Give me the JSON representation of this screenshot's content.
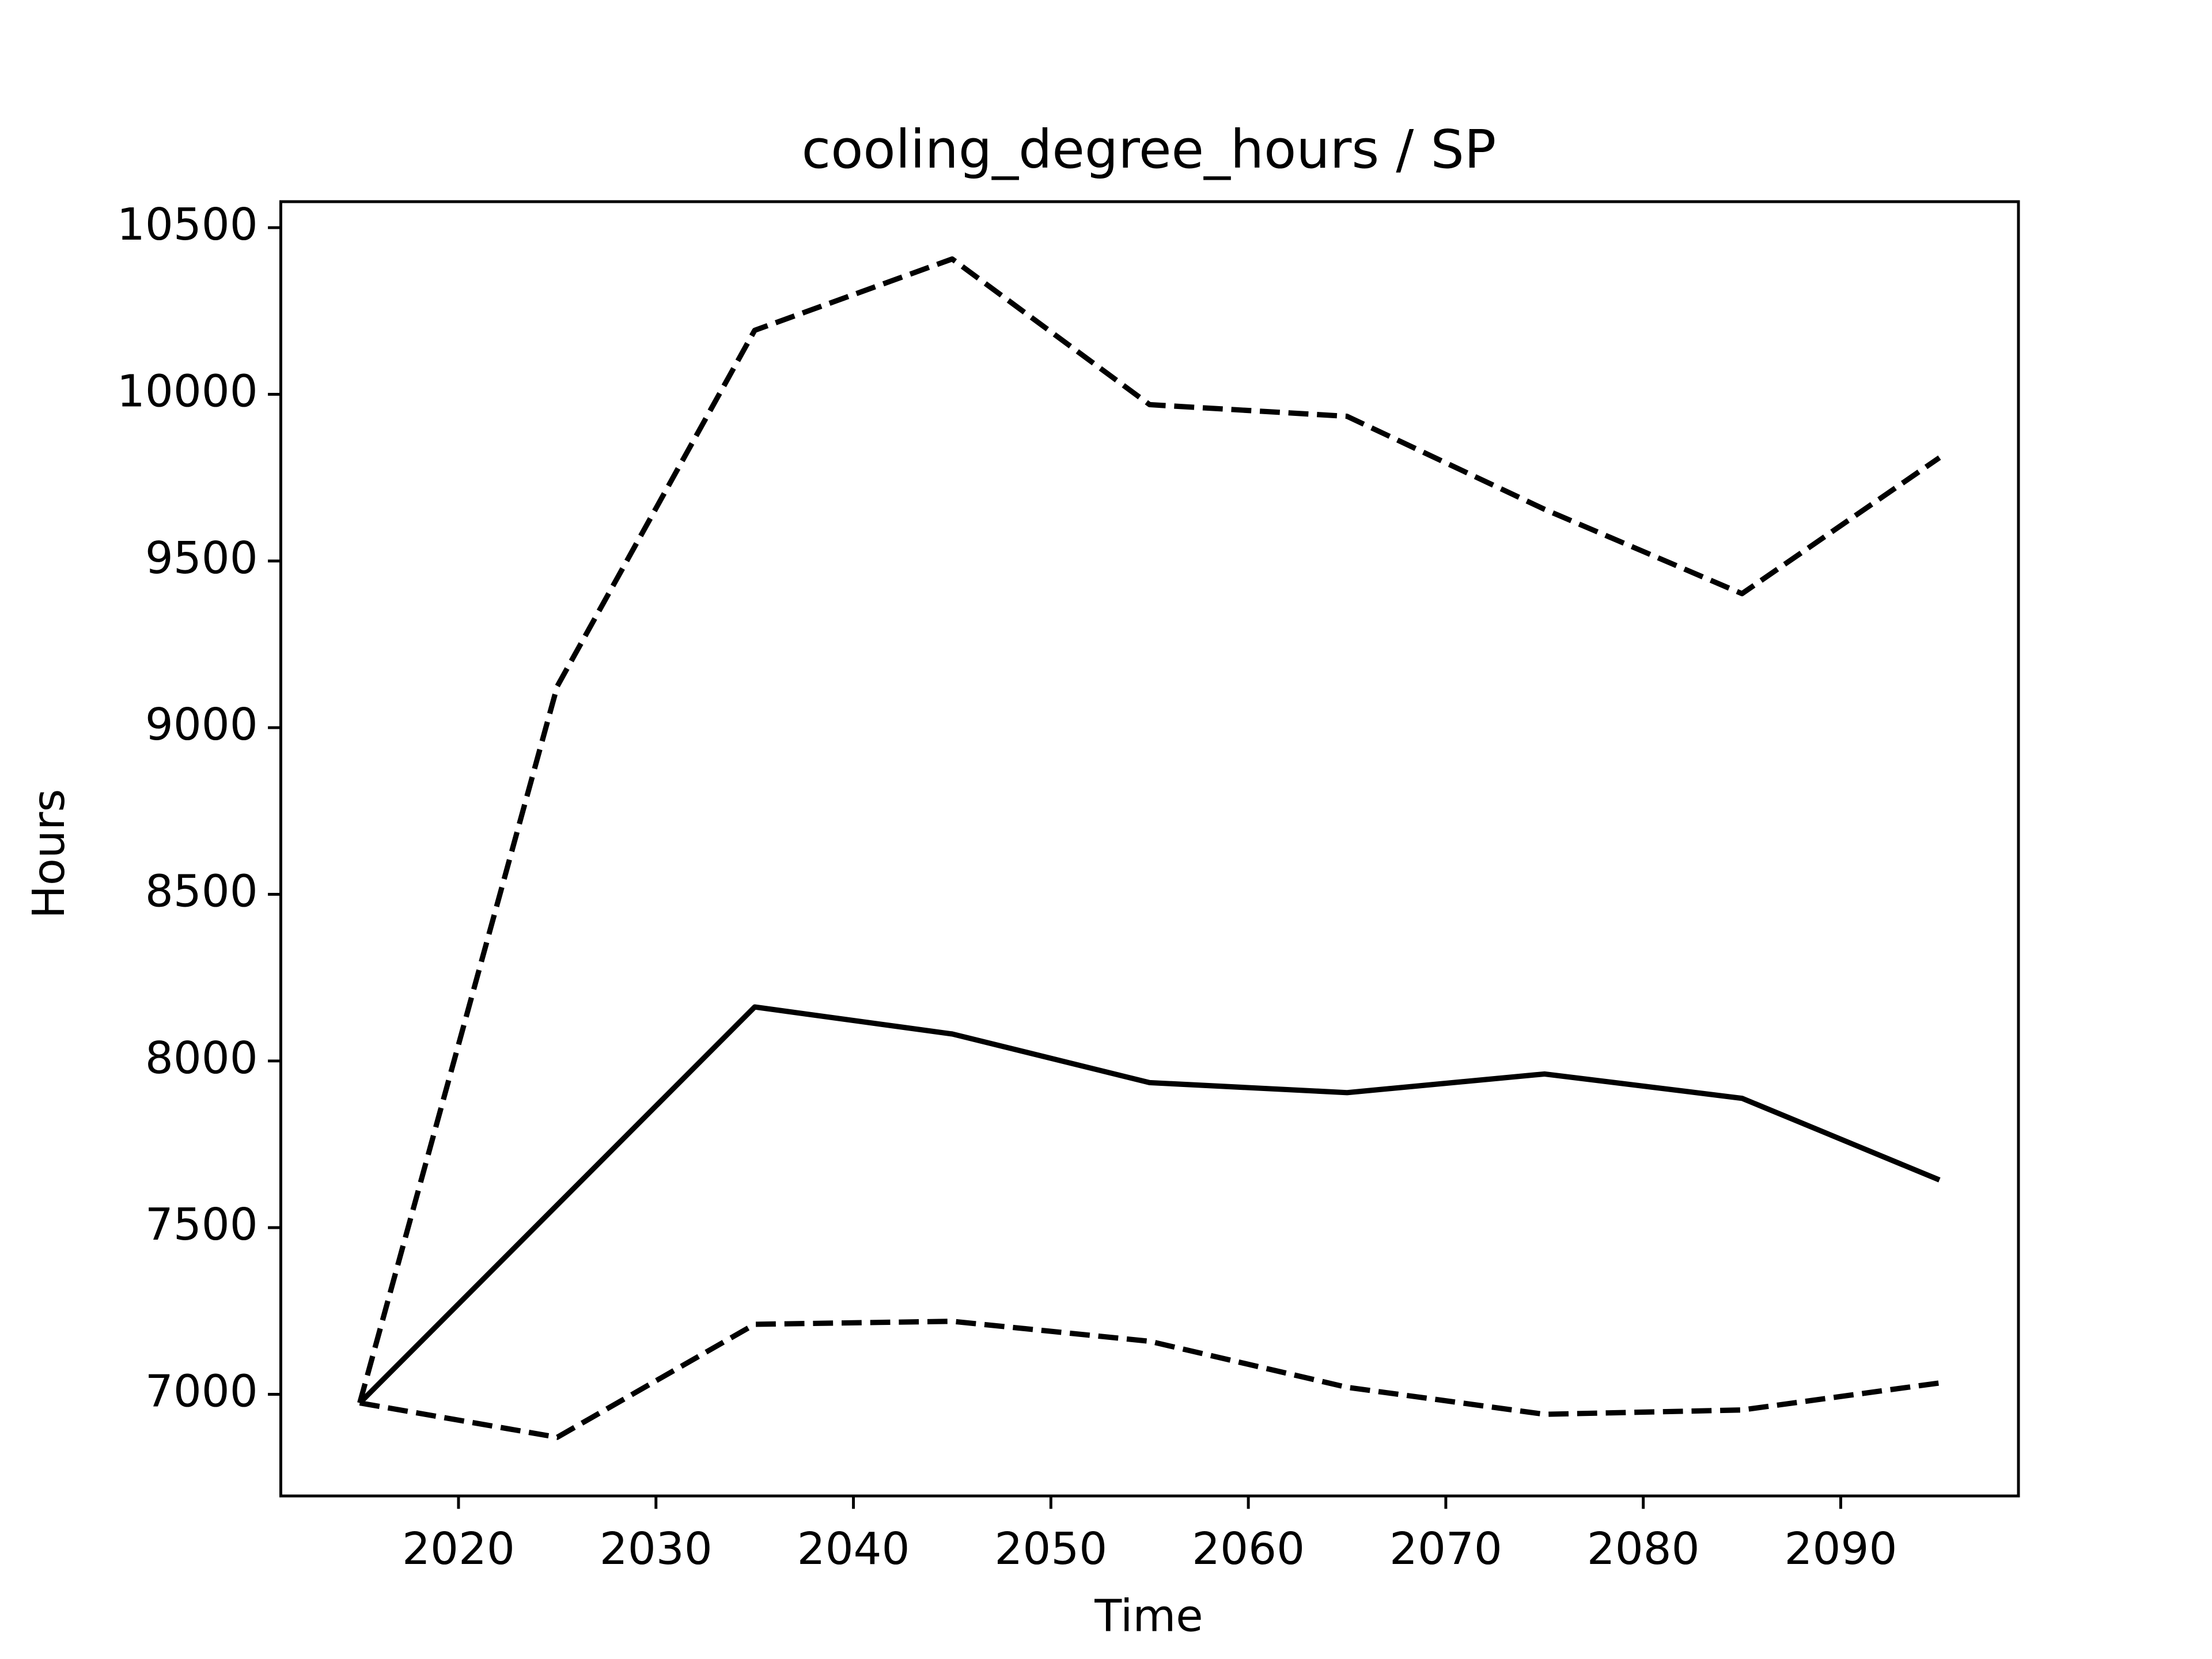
{
  "chart_data": {
    "type": "line",
    "title": "cooling_degree_hours / SP",
    "x_label": "Time",
    "y_label": "Hours",
    "x": [
      2015,
      2025,
      2035,
      2045,
      2055,
      2065,
      2075,
      2085,
      2095
    ],
    "series": [
      {
        "color": "#000000",
        "dash": "solid",
        "values": [
          6974,
          7568,
          8162,
          8081,
          7935,
          7905,
          7961,
          7888,
          7643
        ]
      },
      {
        "color": "#000000",
        "dash": "dashed",
        "values": [
          6974,
          9124,
          10192,
          10406,
          9969,
          9934,
          9655,
          9402,
          9810
        ]
      },
      {
        "color": "#000000",
        "dash": "dashed",
        "values": [
          6974,
          6871,
          7210,
          7219,
          7159,
          7021,
          6940,
          6953,
          7034
        ]
      }
    ],
    "xlim": [
      2011,
      2099
    ],
    "ylim": [
      6695,
      10578
    ],
    "xticks": [
      2020,
      2030,
      2040,
      2050,
      2060,
      2070,
      2080,
      2090
    ],
    "yticks": [
      7000,
      7500,
      8000,
      8500,
      9000,
      9500,
      10000,
      10500
    ],
    "grid": false
  }
}
